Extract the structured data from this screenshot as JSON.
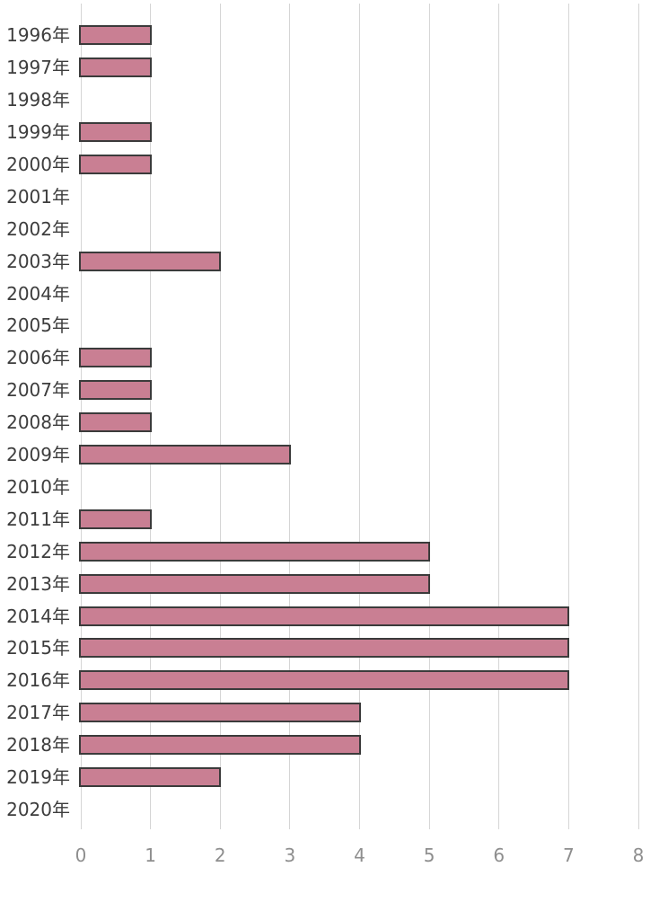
{
  "chart_data": {
    "type": "bar",
    "orientation": "horizontal",
    "title": "",
    "xlabel": "",
    "ylabel": "",
    "categories": [
      "1996年",
      "1997年",
      "1998年",
      "1999年",
      "2000年",
      "2001年",
      "2002年",
      "2003年",
      "2004年",
      "2005年",
      "2006年",
      "2007年",
      "2008年",
      "2009年",
      "2010年",
      "2011年",
      "2012年",
      "2013年",
      "2014年",
      "2015年",
      "2016年",
      "2017年",
      "2018年",
      "2019年",
      "2020年"
    ],
    "values": [
      1,
      1,
      0,
      1,
      1,
      0,
      0,
      2,
      0,
      0,
      1,
      1,
      1,
      3,
      0,
      1,
      5,
      5,
      7,
      7,
      7,
      4,
      4,
      2,
      0
    ],
    "xlim": [
      0,
      8
    ],
    "x_ticks": [
      "0",
      "1",
      "2",
      "3",
      "4",
      "5",
      "6",
      "7",
      "8"
    ],
    "grid": true,
    "legend": false,
    "colors": {
      "bar_fill": "#c97f93",
      "bar_border": "#3b3b3b",
      "gridline": "#d5d5d5",
      "category_label": "#3d3d3d",
      "tick_label": "#8e8e8e",
      "background": "#ffffff"
    }
  }
}
